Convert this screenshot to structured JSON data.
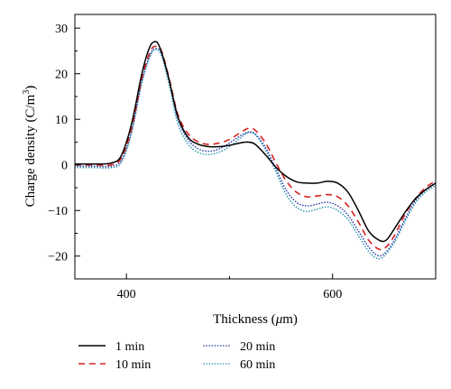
{
  "chart_data": {
    "type": "line",
    "title": "",
    "xlabel_prefix": "Thickness (",
    "xlabel_unit_greek": "μ",
    "xlabel_suffix": "m)",
    "ylabel_prefix": "Charge density (C/m",
    "ylabel_sup": "3",
    "ylabel_suffix": ")",
    "xlim": [
      350,
      700
    ],
    "ylim": [
      -25,
      33
    ],
    "xticks": [
      400,
      600
    ],
    "yticks": [
      -20,
      -10,
      0,
      10,
      20,
      30
    ],
    "grid": false,
    "legend_position": "bottom",
    "series": [
      {
        "name": "1 min",
        "color": "#000000",
        "dash": "solid",
        "points": [
          [
            350,
            0.2
          ],
          [
            370,
            0.2
          ],
          [
            385,
            0.4
          ],
          [
            395,
            2
          ],
          [
            405,
            9
          ],
          [
            415,
            20
          ],
          [
            422,
            25.5
          ],
          [
            427,
            27
          ],
          [
            432,
            26
          ],
          [
            440,
            20
          ],
          [
            450,
            10.5
          ],
          [
            460,
            6
          ],
          [
            470,
            4.5
          ],
          [
            480,
            4
          ],
          [
            490,
            4
          ],
          [
            500,
            4.3
          ],
          [
            510,
            4.8
          ],
          [
            518,
            5
          ],
          [
            525,
            4.5
          ],
          [
            535,
            2.2
          ],
          [
            545,
            -0.5
          ],
          [
            555,
            -2.5
          ],
          [
            565,
            -3.7
          ],
          [
            575,
            -4
          ],
          [
            585,
            -4
          ],
          [
            595,
            -3.6
          ],
          [
            605,
            -4
          ],
          [
            615,
            -6
          ],
          [
            625,
            -10
          ],
          [
            635,
            -14.5
          ],
          [
            645,
            -16.5
          ],
          [
            652,
            -16.5
          ],
          [
            660,
            -14
          ],
          [
            670,
            -10.5
          ],
          [
            680,
            -7.5
          ],
          [
            690,
            -5.5
          ],
          [
            700,
            -4
          ]
        ]
      },
      {
        "name": "10 min",
        "color": "#d62020",
        "dash": "7,5",
        "points": [
          [
            350,
            0
          ],
          [
            370,
            0
          ],
          [
            385,
            0
          ],
          [
            395,
            1.5
          ],
          [
            405,
            8
          ],
          [
            415,
            19
          ],
          [
            423,
            24.8
          ],
          [
            428,
            26
          ],
          [
            434,
            25
          ],
          [
            442,
            18.5
          ],
          [
            450,
            11
          ],
          [
            460,
            6.8
          ],
          [
            470,
            5
          ],
          [
            480,
            4.5
          ],
          [
            490,
            4.8
          ],
          [
            500,
            5.6
          ],
          [
            510,
            7
          ],
          [
            518,
            8
          ],
          [
            525,
            7.6
          ],
          [
            535,
            4.8
          ],
          [
            545,
            0.5
          ],
          [
            555,
            -3.5
          ],
          [
            565,
            -6
          ],
          [
            575,
            -7
          ],
          [
            585,
            -6.8
          ],
          [
            595,
            -6.5
          ],
          [
            605,
            -7
          ],
          [
            615,
            -9
          ],
          [
            625,
            -12.5
          ],
          [
            635,
            -16.5
          ],
          [
            645,
            -18.5
          ],
          [
            652,
            -18
          ],
          [
            660,
            -15.5
          ],
          [
            670,
            -11
          ],
          [
            680,
            -7.5
          ],
          [
            690,
            -5
          ],
          [
            700,
            -3.5
          ]
        ]
      },
      {
        "name": "20 min",
        "color": "#2e3fa8",
        "dash": "2,3",
        "points": [
          [
            350,
            -0.3
          ],
          [
            370,
            -0.3
          ],
          [
            385,
            -0.3
          ],
          [
            395,
            1
          ],
          [
            405,
            7.5
          ],
          [
            415,
            18.5
          ],
          [
            423,
            24.2
          ],
          [
            428,
            25.5
          ],
          [
            434,
            24.5
          ],
          [
            442,
            18
          ],
          [
            450,
            10
          ],
          [
            460,
            5.5
          ],
          [
            470,
            3.5
          ],
          [
            480,
            3
          ],
          [
            490,
            3.5
          ],
          [
            500,
            4.8
          ],
          [
            510,
            6.3
          ],
          [
            518,
            7.2
          ],
          [
            525,
            6.8
          ],
          [
            535,
            3.8
          ],
          [
            545,
            -0.8
          ],
          [
            555,
            -5.5
          ],
          [
            565,
            -8.2
          ],
          [
            575,
            -9
          ],
          [
            585,
            -8.6
          ],
          [
            595,
            -8.2
          ],
          [
            605,
            -9
          ],
          [
            615,
            -11
          ],
          [
            625,
            -14.5
          ],
          [
            635,
            -18
          ],
          [
            643,
            -19.8
          ],
          [
            650,
            -19.5
          ],
          [
            660,
            -16.5
          ],
          [
            670,
            -12
          ],
          [
            680,
            -8
          ],
          [
            690,
            -5.5
          ],
          [
            700,
            -4
          ]
        ]
      },
      {
        "name": "60 min",
        "color": "#2f9ab0",
        "dash": "2,3",
        "points": [
          [
            350,
            -0.6
          ],
          [
            370,
            -0.6
          ],
          [
            385,
            -0.6
          ],
          [
            395,
            0.5
          ],
          [
            405,
            7
          ],
          [
            415,
            18
          ],
          [
            423,
            23.8
          ],
          [
            428,
            25.2
          ],
          [
            434,
            24
          ],
          [
            442,
            17
          ],
          [
            450,
            9
          ],
          [
            460,
            4.5
          ],
          [
            470,
            2.7
          ],
          [
            480,
            2.3
          ],
          [
            490,
            2.8
          ],
          [
            500,
            4
          ],
          [
            510,
            5.8
          ],
          [
            518,
            7
          ],
          [
            525,
            6.6
          ],
          [
            535,
            3.3
          ],
          [
            545,
            -1.5
          ],
          [
            555,
            -6.5
          ],
          [
            565,
            -9.3
          ],
          [
            575,
            -10.2
          ],
          [
            585,
            -9.7
          ],
          [
            595,
            -9.2
          ],
          [
            605,
            -10
          ],
          [
            615,
            -12
          ],
          [
            625,
            -15.5
          ],
          [
            635,
            -19
          ],
          [
            643,
            -20.5
          ],
          [
            650,
            -20
          ],
          [
            660,
            -17
          ],
          [
            670,
            -12.5
          ],
          [
            680,
            -8.5
          ],
          [
            690,
            -6
          ],
          [
            700,
            -4.5
          ]
        ]
      }
    ]
  }
}
